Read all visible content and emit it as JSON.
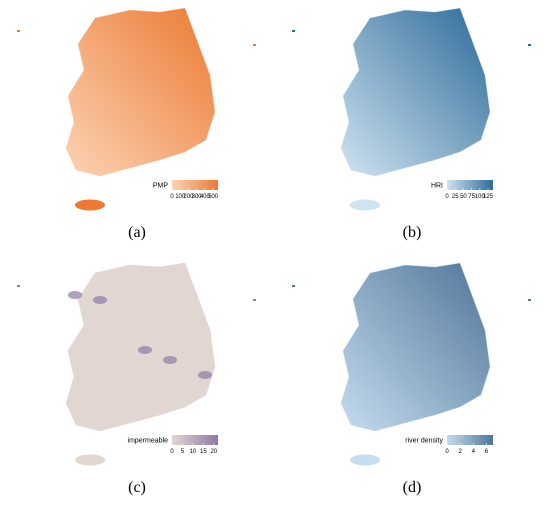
{
  "maps": [
    {
      "label": "(a)",
      "legend": {
        "title": "PMP",
        "lim": [
          0,
          560
        ],
        "ticks": [
          0,
          100,
          200,
          300,
          400,
          500
        ],
        "colors": [
          "#fbd3b4",
          "#ec7a33"
        ]
      }
    },
    {
      "label": "(b)",
      "legend": {
        "title": "HRI",
        "lim": [
          0,
          140
        ],
        "ticks": [
          0,
          25,
          50,
          75,
          100,
          125
        ],
        "colors": [
          "#cfe3f1",
          "#2c6a98"
        ]
      }
    },
    {
      "label": "(c)",
      "legend": {
        "title": "impermeable",
        "lim": [
          0,
          22
        ],
        "ticks": [
          0,
          5,
          10,
          15,
          20
        ],
        "colors": [
          "#e2d6d3",
          "#8e79a3"
        ]
      }
    },
    {
      "label": "(d)",
      "legend": {
        "title": "river density",
        "lim": [
          0,
          7
        ],
        "ticks": [
          0,
          2,
          4,
          6
        ],
        "colors": [
          "#c6dcef",
          "#4f7598"
        ]
      }
    }
  ]
}
